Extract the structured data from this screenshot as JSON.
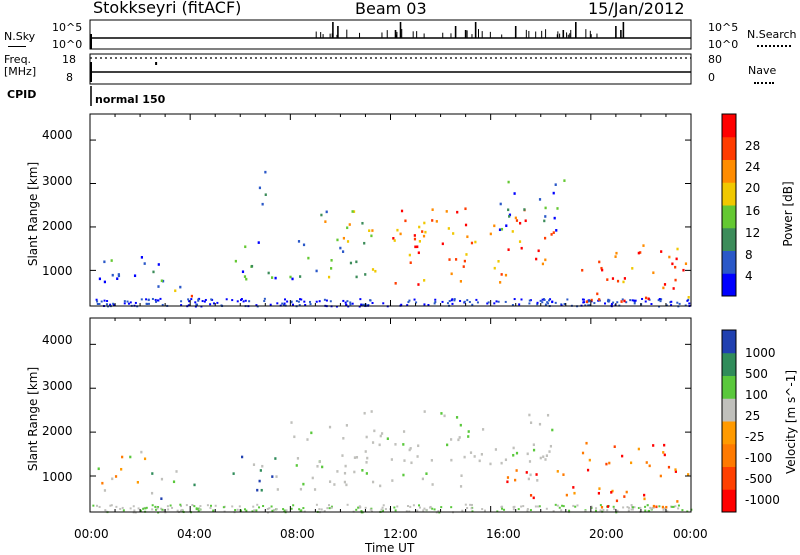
{
  "header": {
    "station": "Stokkseyri (fitACF)",
    "beam": "Beam 03",
    "date": "15/Jan/2012"
  },
  "top_panels": {
    "nsky_label": "N.Sky",
    "nsearch_label": "N.Search",
    "noise_tick_top": "10^5",
    "noise_tick_bottom": "10^0",
    "freq_label": "Freq.",
    "freq_unit": "[MHz]",
    "freq_tick_top": "18",
    "freq_tick_bottom": "8",
    "nave_label": "Nave",
    "nave_tick_top": "80",
    "nave_tick_bottom": "0",
    "cpid_label": "CPID",
    "cpid_value": "normal 150"
  },
  "chart_data": [
    {
      "type": "heatmap",
      "title": "",
      "xlabel": "Time UT",
      "ylabel": "Slant Range [km]",
      "xlim": [
        0,
        24
      ],
      "ylim": [
        180,
        4600
      ],
      "xticks": [
        "00:00",
        "04:00",
        "08:00",
        "12:00",
        "16:00",
        "20:00",
        "00:00"
      ],
      "yticks": [
        "1000",
        "2000",
        "3000",
        "4000"
      ],
      "colorbar": {
        "label": "Power [dB]",
        "ticks": [
          "4",
          "8",
          "12",
          "16",
          "20",
          "24",
          "28"
        ],
        "range": [
          0,
          30
        ],
        "colors": [
          "#0000ff",
          "#2a58c8",
          "#3c8c5a",
          "#64c832",
          "#f0c800",
          "#ff8c00",
          "#ff3c00",
          "#ff0000"
        ]
      },
      "regions": [
        {
          "t": [
            0.3,
            2.2
          ],
          "r": [
            700,
            1700
          ],
          "level": "low"
        },
        {
          "t": [
            2.4,
            4.3
          ],
          "r": [
            600,
            1200
          ],
          "level": "low"
        },
        {
          "t": [
            3.3,
            4.6
          ],
          "r": [
            400,
            650
          ],
          "level": "high"
        },
        {
          "t": [
            5.5,
            8.8
          ],
          "r": [
            800,
            1700
          ],
          "level": "low"
        },
        {
          "t": [
            6.5,
            7.3
          ],
          "r": [
            2500,
            3500
          ],
          "level": "low"
        },
        {
          "t": [
            9.0,
            12.0
          ],
          "r": [
            800,
            2400
          ],
          "level": "mid"
        },
        {
          "t": [
            12.0,
            18.5
          ],
          "r": [
            700,
            2500
          ],
          "level": "high"
        },
        {
          "t": [
            16.0,
            19.0
          ],
          "r": [
            1900,
            3100
          ],
          "level": "low"
        },
        {
          "t": [
            19.5,
            23.9
          ],
          "r": [
            300,
            1800
          ],
          "level": "high"
        }
      ]
    },
    {
      "type": "heatmap",
      "title": "",
      "xlabel": "Time UT",
      "ylabel": "Slant Range [km]",
      "xlim": [
        0,
        24
      ],
      "ylim": [
        180,
        4600
      ],
      "xticks": [
        "00:00",
        "04:00",
        "08:00",
        "12:00",
        "16:00",
        "20:00",
        "00:00"
      ],
      "yticks": [
        "1000",
        "2000",
        "3000",
        "4000"
      ],
      "colorbar": {
        "label": "Velocity [m s^-1]",
        "ticks": [
          "1000",
          "500",
          "100",
          "25",
          "-25",
          "-100",
          "-500",
          "-1000"
        ],
        "range": [
          -1000,
          1000
        ],
        "colors": [
          "#2040b0",
          "#308c5a",
          "#5ac83c",
          "#c0c0bc",
          "#ff9a00",
          "#ff7a00",
          "#ff4000",
          "#ff0000"
        ]
      },
      "regions": [
        {
          "t": [
            0.3,
            2.2
          ],
          "r": [
            700,
            1700
          ],
          "level": "mixed"
        },
        {
          "t": [
            2.4,
            4.3
          ],
          "r": [
            500,
            1200
          ],
          "level": "positive"
        },
        {
          "t": [
            5.5,
            7.5
          ],
          "r": [
            700,
            1800
          ],
          "level": "positive"
        },
        {
          "t": [
            8.0,
            18.5
          ],
          "r": [
            700,
            2500
          ],
          "level": "zero"
        },
        {
          "t": [
            16.5,
            19.5
          ],
          "r": [
            500,
            1300
          ],
          "level": "negative"
        },
        {
          "t": [
            19.5,
            23.9
          ],
          "r": [
            300,
            1800
          ],
          "level": "negative"
        }
      ]
    }
  ]
}
